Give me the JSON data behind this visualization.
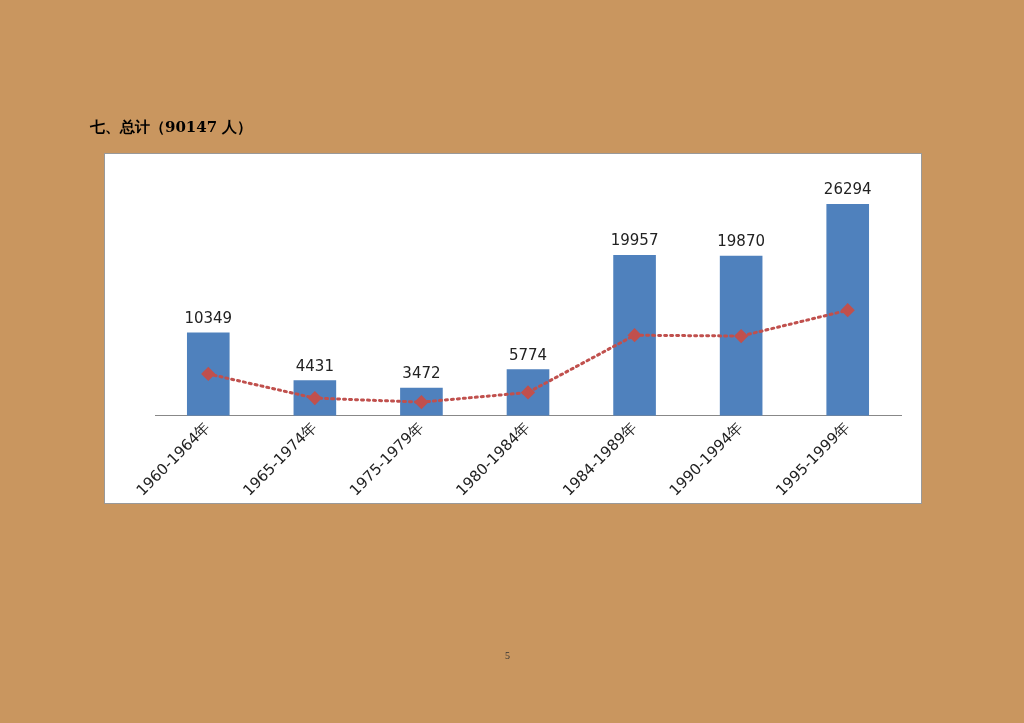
{
  "chart_data": {
    "type": "bar",
    "title": "七、总计（90147 人）",
    "categories": [
      "1960-1964年",
      "1965-1974年",
      "1975-1979年",
      "1980-1984年",
      "1984-1989年",
      "1990-1994年",
      "1995-1999年"
    ],
    "series": [
      {
        "color": "#4f81bd",
        "values": [
          10349,
          4431,
          3472,
          5774,
          19957,
          19870,
          26294
        ],
        "value_labels": [
          "10349",
          "4431",
          "3472",
          "5774",
          "19957",
          "19870",
          "26294"
        ]
      },
      {
        "type": "line",
        "color": "#c0504d",
        "values": [
          5200,
          2200,
          1700,
          2900,
          10000,
          9900,
          13100
        ],
        "marker": "diamond",
        "line_style": "dotted"
      }
    ],
    "grid": false,
    "legend": false,
    "annotations": [
      "5"
    ]
  }
}
